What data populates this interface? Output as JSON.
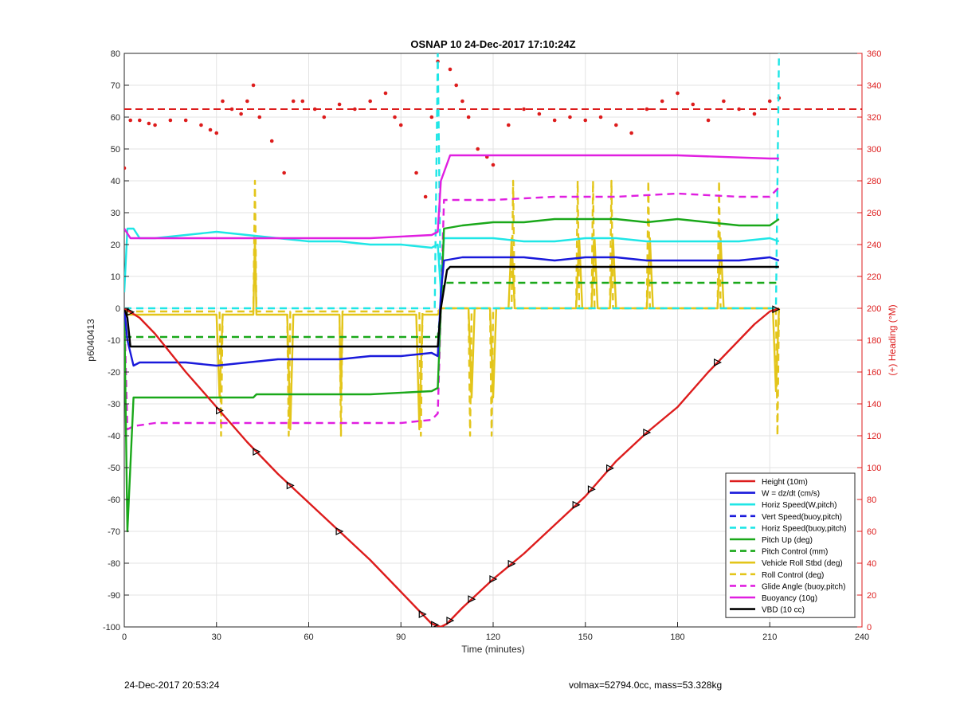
{
  "chart_data": {
    "type": "line",
    "title": "OSNAP 10 24-Dec-2017 17:10:24Z",
    "xlabel": "Time (minutes)",
    "ylabel": "p6040413",
    "ylabel_right": "(+) Heading (°M)",
    "xlim": [
      0,
      240
    ],
    "ylim": [
      -100,
      80
    ],
    "ylim_right": [
      0,
      360
    ],
    "xticks": [
      0,
      30,
      60,
      90,
      120,
      150,
      180,
      210,
      240
    ],
    "yticks": [
      -100,
      -90,
      -80,
      -70,
      -60,
      -50,
      -40,
      -30,
      -20,
      -10,
      0,
      10,
      20,
      30,
      40,
      50,
      60,
      70,
      80
    ],
    "yticks_right": [
      0,
      20,
      40,
      60,
      80,
      100,
      120,
      140,
      160,
      180,
      200,
      220,
      240,
      260,
      280,
      300,
      320,
      340,
      360
    ],
    "grid": true,
    "legend_position": "bottom-right",
    "colors": {
      "red": "#dd1c1c",
      "blue": "#1a1adb",
      "cyan": "#1fe6e6",
      "green": "#1aa81a",
      "yellow": "#e3c51a",
      "magenta": "#e01fe0",
      "black": "#000000",
      "grid": "#e3e3e3",
      "right_axis": "#dd1c1c"
    },
    "series": [
      {
        "name": "Height (10m)",
        "color": "#dd1c1c",
        "style": "solid",
        "x": [
          0,
          5,
          10,
          20,
          30,
          40,
          50,
          60,
          70,
          80,
          90,
          95,
          100,
          103,
          105,
          110,
          120,
          130,
          140,
          150,
          160,
          170,
          180,
          190,
          200,
          205,
          210,
          213
        ],
        "y": [
          0,
          -3,
          -8,
          -20,
          -31,
          -42,
          -52,
          -61,
          -70,
          -79,
          -89,
          -94,
          -99,
          -100,
          -99,
          -94,
          -85,
          -77,
          -68,
          -59,
          -48,
          -39,
          -31,
          -20,
          -10,
          -5,
          -1,
          0
        ]
      },
      {
        "name": "W = dz/dt (cm/s)",
        "color": "#1a1adb",
        "style": "solid",
        "x": [
          0,
          1,
          3,
          5,
          10,
          20,
          30,
          40,
          50,
          60,
          70,
          80,
          90,
          100,
          102,
          103,
          104,
          110,
          120,
          130,
          140,
          150,
          160,
          170,
          180,
          190,
          200,
          210,
          213
        ],
        "y": [
          0,
          -10,
          -18,
          -17,
          -17,
          -17,
          -18,
          -17,
          -16,
          -16,
          -16,
          -15,
          -15,
          -14,
          -15,
          5,
          15,
          16,
          16,
          16,
          15,
          16,
          16,
          15,
          15,
          15,
          15,
          16,
          15
        ]
      },
      {
        "name": "Horiz Speed(W,pitch)",
        "color": "#1fe6e6",
        "style": "solid",
        "x": [
          0,
          1,
          3,
          5,
          10,
          20,
          30,
          40,
          50,
          60,
          70,
          80,
          90,
          100,
          102,
          103,
          104,
          110,
          120,
          130,
          140,
          150,
          160,
          170,
          180,
          190,
          200,
          210,
          213
        ],
        "y": [
          5,
          25,
          25,
          22,
          22,
          23,
          24,
          23,
          22,
          21,
          21,
          20,
          20,
          19,
          20,
          5,
          22,
          22,
          22,
          21,
          21,
          22,
          22,
          21,
          21,
          21,
          21,
          22,
          21
        ]
      },
      {
        "name": "Vert Speed(buoy,pitch)",
        "color": "#1a1adb",
        "style": "dashed",
        "x": [],
        "y": []
      },
      {
        "name": "Horiz Speed(buoy,pitch)",
        "color": "#1fe6e6",
        "style": "dashed",
        "x": [
          0,
          101,
          102,
          103,
          104,
          212,
          213
        ],
        "y": [
          0,
          0,
          80,
          0,
          0,
          0,
          80
        ]
      },
      {
        "name": "Pitch Up (deg)",
        "color": "#1aa81a",
        "style": "solid",
        "x": [
          0,
          1,
          3,
          10,
          20,
          30,
          42,
          43,
          60,
          80,
          100,
          102,
          103,
          104,
          110,
          120,
          130,
          140,
          150,
          160,
          170,
          180,
          190,
          200,
          210,
          213
        ],
        "y": [
          0,
          -70,
          -28,
          -28,
          -28,
          -28,
          -28,
          -27,
          -27,
          -27,
          -26,
          -25,
          0,
          25,
          26,
          27,
          27,
          28,
          28,
          28,
          27,
          28,
          27,
          26,
          26,
          28
        ]
      },
      {
        "name": "Pitch Control (mm)",
        "color": "#1aa81a",
        "style": "dashed",
        "x": [
          0,
          2,
          53,
          54,
          102,
          103,
          104,
          120,
          150,
          180,
          213
        ],
        "y": [
          -9,
          -9,
          -9,
          -9,
          -9,
          0,
          8,
          8,
          8,
          8,
          8
        ]
      },
      {
        "name": "Vehicle Roll Stbd (deg)",
        "color": "#e3c51a",
        "style": "solid",
        "x": [
          0,
          2,
          30,
          31,
          32,
          42,
          42.5,
          43,
          53,
          54,
          55,
          70,
          70.5,
          71,
          95,
          96,
          97,
          100,
          102,
          103,
          104,
          112,
          113,
          114,
          119,
          120,
          121,
          125,
          126,
          127,
          147,
          148,
          149,
          152,
          153,
          154,
          158,
          159,
          160,
          170,
          171,
          172,
          193,
          194,
          195,
          211,
          212,
          213
        ],
        "y": [
          -2,
          -2,
          -2,
          -28,
          -2,
          -2,
          22,
          -2,
          -2,
          -38,
          -2,
          -2,
          -28,
          -2,
          -2,
          -38,
          -2,
          -2,
          -2,
          0,
          0,
          0,
          -28,
          0,
          0,
          -28,
          0,
          0,
          22,
          0,
          0,
          22,
          0,
          0,
          22,
          0,
          0,
          22,
          0,
          0,
          22,
          0,
          0,
          22,
          0,
          0,
          -26,
          0
        ]
      },
      {
        "name": "Roll Control (deg)",
        "color": "#e3c51a",
        "style": "dashed",
        "x": [
          0,
          31,
          31.5,
          32,
          42,
          42.5,
          43,
          53,
          53.5,
          54,
          70,
          70.5,
          71,
          96,
          96.5,
          97,
          102,
          103,
          104,
          112,
          112.5,
          113,
          119,
          119.5,
          120,
          126,
          126.5,
          127,
          147,
          147.5,
          148,
          152,
          152.5,
          153,
          158,
          158.5,
          159,
          170,
          170.5,
          171,
          193,
          193.5,
          194,
          212,
          212.5,
          213
        ],
        "y": [
          -1,
          -1,
          -40,
          -1,
          -1,
          40,
          -1,
          -1,
          -40,
          -1,
          -1,
          -40,
          -1,
          -1,
          -40,
          -1,
          -1,
          0,
          0,
          0,
          -40,
          0,
          0,
          -40,
          0,
          0,
          40,
          0,
          0,
          40,
          0,
          0,
          40,
          0,
          0,
          40,
          0,
          0,
          40,
          0,
          0,
          40,
          0,
          0,
          -40,
          0
        ]
      },
      {
        "name": "Glide Angle (buoy,pitch)",
        "color": "#e01fe0",
        "style": "dashed",
        "x": [
          0,
          1,
          3,
          10,
          30,
          50,
          70,
          90,
          100,
          102,
          103,
          104,
          110,
          120,
          140,
          160,
          180,
          200,
          210,
          213
        ],
        "y": [
          0,
          -38,
          -37,
          -36,
          -36,
          -36,
          -36,
          -36,
          -35,
          -33,
          0,
          34,
          34,
          34,
          35,
          35,
          36,
          35,
          35,
          38
        ]
      },
      {
        "name": "Buoyancy (10g)",
        "color": "#e01fe0",
        "style": "solid",
        "x": [
          0,
          2,
          20,
          40,
          60,
          80,
          100,
          102,
          103,
          106,
          120,
          150,
          180,
          210,
          213
        ],
        "y": [
          25,
          22,
          22,
          22,
          22,
          22,
          23,
          24,
          40,
          48,
          48,
          48,
          48,
          47,
          47
        ]
      },
      {
        "name": "VBD (10 cc)",
        "color": "#000000",
        "style": "solid",
        "x": [
          0,
          1,
          2,
          30,
          60,
          90,
          102,
          103,
          105,
          106,
          120,
          150,
          180,
          210,
          213
        ],
        "y": [
          0,
          -3,
          -12,
          -12,
          -12,
          -12,
          -12,
          0,
          12,
          13,
          13,
          13,
          13,
          13,
          13
        ]
      }
    ],
    "heading_points": {
      "name": "Heading",
      "axis": "right",
      "color": "#dd1c1c",
      "mean_line": 325,
      "x": [
        0,
        2,
        5,
        8,
        10,
        15,
        20,
        25,
        28,
        30,
        32,
        35,
        38,
        40,
        42,
        44,
        48,
        52,
        55,
        58,
        62,
        65,
        70,
        75,
        80,
        85,
        88,
        90,
        95,
        98,
        100,
        102,
        106,
        108,
        110,
        112,
        115,
        118,
        120,
        125,
        130,
        135,
        140,
        145,
        150,
        155,
        160,
        165,
        170,
        175,
        180,
        185,
        190,
        195,
        200,
        205,
        210,
        213
      ],
      "y": [
        288,
        318,
        318,
        316,
        315,
        318,
        318,
        315,
        312,
        310,
        330,
        325,
        322,
        330,
        340,
        320,
        305,
        285,
        330,
        330,
        325,
        320,
        328,
        325,
        330,
        335,
        320,
        315,
        285,
        270,
        320,
        355,
        350,
        340,
        330,
        320,
        300,
        295,
        290,
        315,
        325,
        322,
        318,
        320,
        318,
        320,
        315,
        310,
        325,
        330,
        335,
        328,
        318,
        330,
        325,
        322,
        330,
        332
      ]
    }
  },
  "footer": {
    "left": "24-Dec-2017 20:53:24",
    "right": "volmax=52794.0cc, mass=53.328kg"
  }
}
